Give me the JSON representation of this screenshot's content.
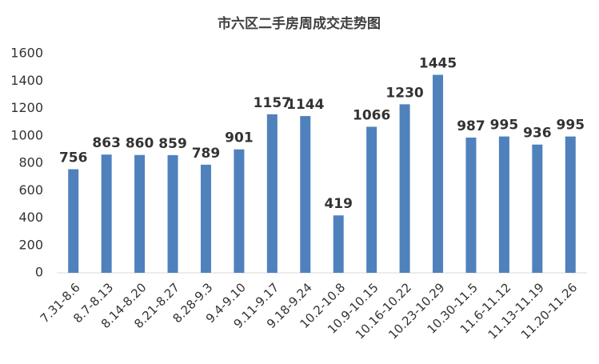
{
  "chart_data": {
    "type": "bar",
    "title": "市六区二手房周成交走势图",
    "categories": [
      "7.31-8.6",
      "8.7-8.13",
      "8.14-8.20",
      "8.21-8.27",
      "8.28-9.3",
      "9.4-9.10",
      "9.11-9.17",
      "9.18-9.24",
      "10.2-10.8",
      "10.9-10.15",
      "10.16-10.22",
      "10.23-10.29",
      "10.30-11.5",
      "11.6-11.12",
      "11.13-11.19",
      "11.20-11.26"
    ],
    "values": [
      756,
      863,
      860,
      859,
      789,
      901,
      1157,
      1144,
      419,
      1066,
      1230,
      1445,
      987,
      995,
      936,
      995
    ],
    "color": "#4f81bd",
    "ylim": [
      0,
      1600
    ],
    "yticks": [
      0,
      200,
      400,
      600,
      800,
      1000,
      1200,
      1400,
      1600
    ],
    "grid": false
  }
}
